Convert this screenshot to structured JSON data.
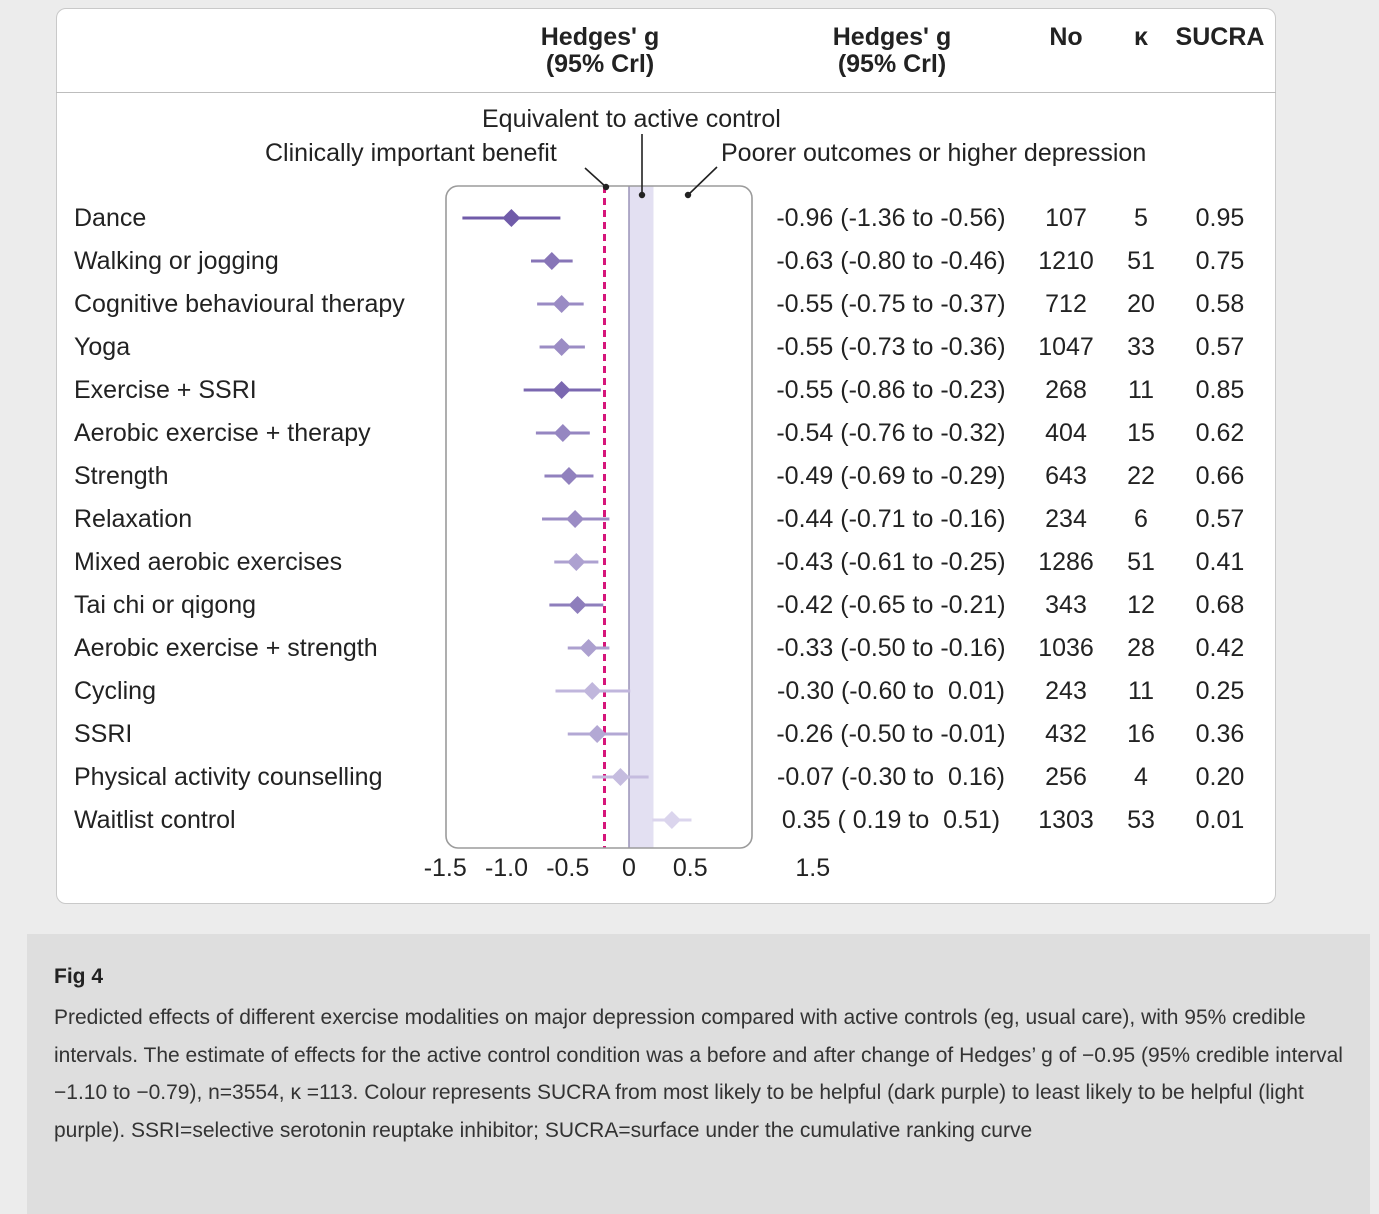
{
  "columns": {
    "plot_header": [
      "Hedges' g",
      "(95% Crl)"
    ],
    "value_header": [
      "Hedges' g",
      "(95% Crl)"
    ],
    "n_header": "No",
    "k_header": "κ",
    "sucra_header": "SUCRA"
  },
  "annotations": {
    "equivalent": "Equivalent to active control",
    "clinical": "Clinically important benefit",
    "poorer": "Poorer outcomes or higher depression"
  },
  "figure": {
    "number": "Fig 4",
    "caption": "Predicted effects of different exercise modalities on major depression compared with active controls (eg, usual care), with 95% credible intervals. The estimate of effects for the active control condition was a before and after change of Hedges’ g of −0.95 (95% credible interval −1.10 to −0.79), n=3554, κ =113. Colour represents SUCRA from most likely to be helpful (dark purple) to least likely to be helpful (light purple). SSRI=selective serotonin reuptake inhibitor; SUCRA=surface under the cumulative ranking curve"
  },
  "chart_data": {
    "type": "forest",
    "xlim": [
      -1.5,
      1.5
    ],
    "x_ticks": [
      "-1.5",
      "-1.0",
      "-0.5",
      "0",
      "0.5",
      "1.5"
    ],
    "x_tick_values": [
      -1.5,
      -1.0,
      -0.5,
      0,
      0.5,
      1.5
    ],
    "reference_lines": {
      "clinically_important": -0.2,
      "null": 0
    },
    "equivalence_band": [
      0,
      0.2
    ],
    "color_scale": {
      "dark": "#6a55a5",
      "light": "#dcd6ee"
    },
    "band_color": "#e3e0f2",
    "dashed_line_color": "#d6157a",
    "rows": [
      {
        "label": "Dance",
        "g": -0.96,
        "lo": -1.36,
        "hi": -0.56,
        "ci_text": "-0.96 (-1.36 to -0.56)",
        "n": "107",
        "k": "5",
        "sucra": "0.95",
        "sucra_value": 0.95
      },
      {
        "label": "Walking or jogging",
        "g": -0.63,
        "lo": -0.8,
        "hi": -0.46,
        "ci_text": "-0.63 (-0.80 to -0.46)",
        "n": "1210",
        "k": "51",
        "sucra": "0.75",
        "sucra_value": 0.75
      },
      {
        "label": "Cognitive behavioural therapy",
        "g": -0.55,
        "lo": -0.75,
        "hi": -0.37,
        "ci_text": "-0.55 (-0.75 to -0.37)",
        "n": "712",
        "k": "20",
        "sucra": "0.58",
        "sucra_value": 0.58
      },
      {
        "label": "Yoga",
        "g": -0.55,
        "lo": -0.73,
        "hi": -0.36,
        "ci_text": "-0.55 (-0.73 to -0.36)",
        "n": "1047",
        "k": "33",
        "sucra": "0.57",
        "sucra_value": 0.57
      },
      {
        "label": "Exercise + SSRI",
        "g": -0.55,
        "lo": -0.86,
        "hi": -0.23,
        "ci_text": "-0.55 (-0.86 to -0.23)",
        "n": "268",
        "k": "11",
        "sucra": "0.85",
        "sucra_value": 0.85
      },
      {
        "label": "Aerobic exercise + therapy",
        "g": -0.54,
        "lo": -0.76,
        "hi": -0.32,
        "ci_text": "-0.54 (-0.76 to -0.32)",
        "n": "404",
        "k": "15",
        "sucra": "0.62",
        "sucra_value": 0.62
      },
      {
        "label": "Strength",
        "g": -0.49,
        "lo": -0.69,
        "hi": -0.29,
        "ci_text": "-0.49 (-0.69 to -0.29)",
        "n": "643",
        "k": "22",
        "sucra": "0.66",
        "sucra_value": 0.66
      },
      {
        "label": "Relaxation",
        "g": -0.44,
        "lo": -0.71,
        "hi": -0.16,
        "ci_text": "-0.44 (-0.71 to -0.16)",
        "n": "234",
        "k": "6",
        "sucra": "0.57",
        "sucra_value": 0.57
      },
      {
        "label": "Mixed aerobic exercises",
        "g": -0.43,
        "lo": -0.61,
        "hi": -0.25,
        "ci_text": "-0.43 (-0.61 to -0.25)",
        "n": "1286",
        "k": "51",
        "sucra": "0.41",
        "sucra_value": 0.41
      },
      {
        "label": "Tai chi or qigong",
        "g": -0.42,
        "lo": -0.65,
        "hi": -0.21,
        "ci_text": "-0.42 (-0.65 to -0.21)",
        "n": "343",
        "k": "12",
        "sucra": "0.68",
        "sucra_value": 0.68
      },
      {
        "label": "Aerobic exercise + strength",
        "g": -0.33,
        "lo": -0.5,
        "hi": -0.16,
        "ci_text": "-0.33 (-0.50 to -0.16)",
        "n": "1036",
        "k": "28",
        "sucra": "0.42",
        "sucra_value": 0.42
      },
      {
        "label": "Cycling",
        "g": -0.3,
        "lo": -0.6,
        "hi": 0.01,
        "ci_text": "-0.30 (-0.60 to  0.01)",
        "n": "243",
        "k": "11",
        "sucra": "0.25",
        "sucra_value": 0.25
      },
      {
        "label": "SSRI",
        "g": -0.26,
        "lo": -0.5,
        "hi": -0.01,
        "ci_text": "-0.26 (-0.50 to -0.01)",
        "n": "432",
        "k": "16",
        "sucra": "0.36",
        "sucra_value": 0.36
      },
      {
        "label": "Physical activity counselling",
        "g": -0.07,
        "lo": -0.3,
        "hi": 0.16,
        "ci_text": "-0.07 (-0.30 to  0.16)",
        "n": "256",
        "k": "4",
        "sucra": "0.20",
        "sucra_value": 0.2
      },
      {
        "label": "Waitlist control",
        "g": 0.35,
        "lo": 0.19,
        "hi": 0.51,
        "ci_text": "0.35 ( 0.19 to  0.51)",
        "n": "1303",
        "k": "53",
        "sucra": "0.01",
        "sucra_value": 0.01
      }
    ]
  }
}
